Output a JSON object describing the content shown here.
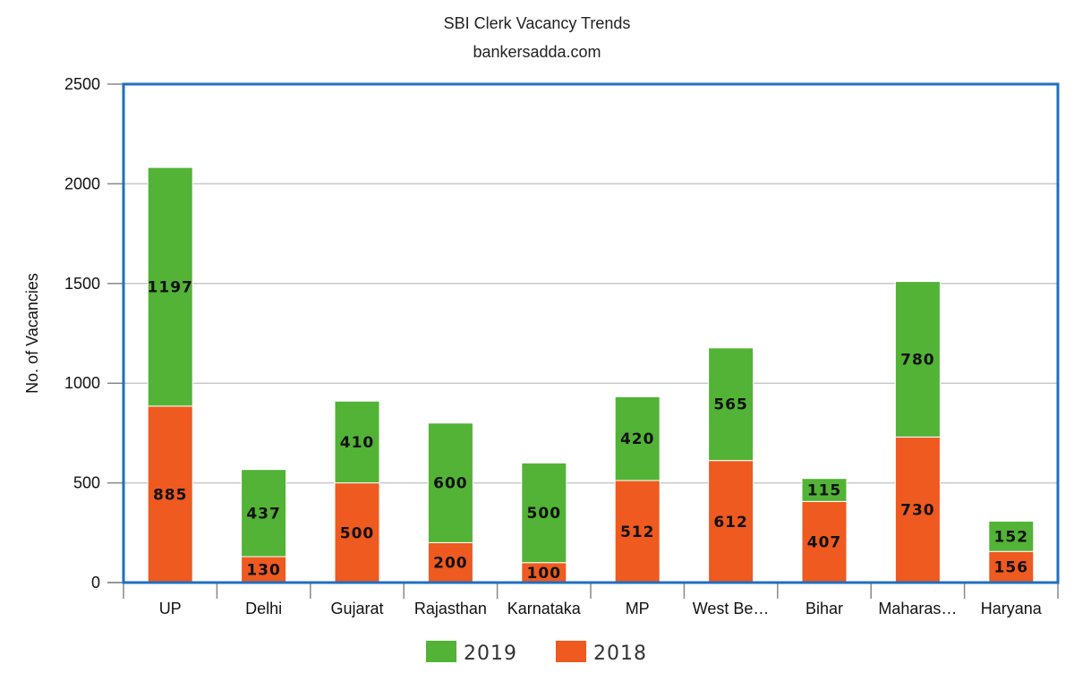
{
  "chart_data": {
    "type": "bar",
    "stacked": true,
    "title": "SBI Clerk Vacancy Trends",
    "subtitle": "bankersadda.com",
    "xlabel": "",
    "ylabel": "No. of Vacancies",
    "ylim": [
      0,
      2500
    ],
    "yticks": [
      0,
      500,
      1000,
      1500,
      2000,
      2500
    ],
    "grid": true,
    "legend_position": "bottom",
    "categories": [
      "UP",
      "Delhi",
      "Gujarat",
      "Rajasthan",
      "Karnataka",
      "MP",
      "West Be…",
      "Bihar",
      "Maharas…",
      "Haryana"
    ],
    "series": [
      {
        "name": "2018",
        "color": "#EE5A1F",
        "values": [
          885,
          130,
          500,
          200,
          100,
          512,
          612,
          407,
          730,
          156
        ]
      },
      {
        "name": "2019",
        "color": "#52B336",
        "values": [
          1197,
          437,
          410,
          600,
          500,
          420,
          565,
          115,
          780,
          152
        ]
      }
    ],
    "legend_order": [
      "2019",
      "2018"
    ]
  }
}
